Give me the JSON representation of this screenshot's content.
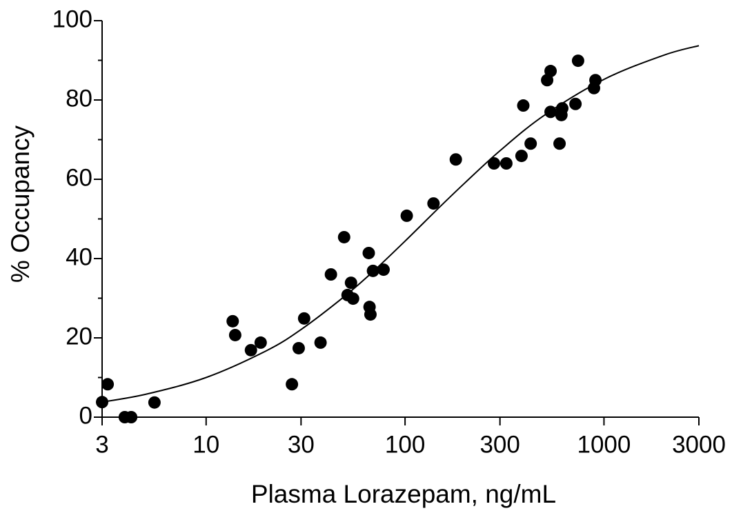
{
  "chart_data": {
    "type": "scatter",
    "x_label": "Plasma Lorazepam, ng/mL",
    "y_label": "% Occupancy",
    "xscale": "log",
    "xlim": [
      3,
      3000
    ],
    "xticks": [
      3,
      10,
      30,
      100,
      300,
      1000,
      3000
    ],
    "ylim": [
      0,
      100
    ],
    "yticks": [
      0,
      20,
      40,
      60,
      80,
      100
    ],
    "yminorticks": [
      10,
      30,
      50,
      70,
      90
    ],
    "grid": false,
    "series": [
      {
        "style": "markers",
        "color": "#000000",
        "x": [
          3.0,
          3.2,
          3.9,
          4.2,
          5.5,
          13.6,
          14.0,
          16.8,
          18.8,
          27,
          29.2,
          31.1,
          37.6,
          42.4,
          49.4,
          51.4,
          53.5,
          54.8,
          65.7,
          66.3,
          67.0,
          69.0,
          78.0,
          102,
          139,
          180,
          280,
          323,
          385,
          393,
          428,
          518,
          539,
          539,
          598,
          611,
          617,
          719,
          741,
          891,
          906
        ],
        "values": [
          3.8,
          8.3,
          0,
          0,
          3.7,
          24.2,
          20.7,
          16.9,
          18.8,
          8.3,
          17.4,
          24.9,
          18.8,
          36,
          45.4,
          30.8,
          33.9,
          29.9,
          41.4,
          27.8,
          25.9,
          36.9,
          37.2,
          50.8,
          53.9,
          65,
          64,
          64,
          65.9,
          78.6,
          69,
          85,
          87.3,
          77,
          69,
          76.2,
          77.9,
          79,
          89.9,
          83,
          85
        ]
      },
      {
        "style": "line",
        "color": "#000000",
        "x": [
          3,
          5,
          10,
          20,
          30,
          50,
          70,
          100,
          150,
          200,
          300,
          500,
          1000,
          2000,
          3000
        ],
        "values": [
          3.8,
          5.8,
          10.0,
          16.7,
          22.1,
          30.6,
          37.0,
          44.4,
          53.1,
          59.1,
          67.2,
          76.1,
          85.2,
          91.3,
          93.7
        ]
      }
    ]
  }
}
